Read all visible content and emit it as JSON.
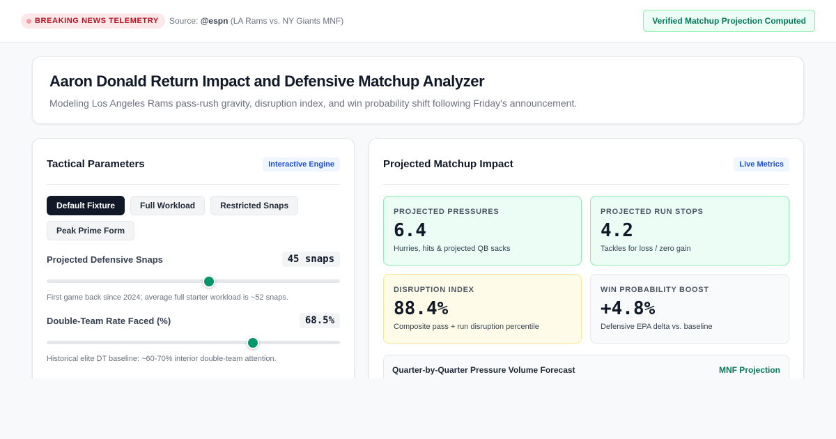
{
  "topbar": {
    "badge": "BREAKING NEWS TELEMETRY",
    "source_prefix": "Source:",
    "source_handle": "@espn",
    "source_context": "(LA Rams vs. NY Giants MNF)",
    "verified": "Verified Matchup Projection Computed"
  },
  "header": {
    "title": "Aaron Donald Return Impact and Defensive Matchup Analyzer",
    "subtitle": "Modeling Los Angeles Rams pass-rush gravity, disruption index, and win probability shift following Friday's announcement."
  },
  "left_panel": {
    "title": "Tactical Parameters",
    "tag": "Interactive Engine",
    "presets": [
      {
        "label": "Default Fixture",
        "active": true
      },
      {
        "label": "Full Workload",
        "active": false
      },
      {
        "label": "Restricted Snaps",
        "active": false
      },
      {
        "label": "Peak Prime Form",
        "active": false
      }
    ],
    "params": [
      {
        "label": "Projected Defensive Snaps",
        "value": "45 snaps",
        "level": 0.553,
        "help": "First game back since 2024; average full starter workload is ~52 snaps."
      },
      {
        "label": "Double-Team Rate Faced (%)",
        "value": "68.5%",
        "level": 0.704,
        "help": "Historical elite DT baseline: ~60-70% interior double-team attention."
      }
    ]
  },
  "right_panel": {
    "title": "Projected Matchup Impact",
    "tag": "Live Metrics",
    "metrics": [
      {
        "label": "PROJECTED PRESSURES",
        "value": "6.4",
        "desc": "Hurries, hits & projected QB sacks",
        "tone": "green"
      },
      {
        "label": "PROJECTED RUN STOPS",
        "value": "4.2",
        "desc": "Tackles for loss / zero gain",
        "tone": "green"
      },
      {
        "label": "DISRUPTION INDEX",
        "value": "88.4%",
        "desc": "Composite pass + run disruption percentile",
        "tone": "amber"
      },
      {
        "label": "WIN PROBABILITY BOOST",
        "value": "+4.8%",
        "desc": "Defensive EPA delta vs. baseline",
        "tone": "gray"
      }
    ],
    "forecast": {
      "title": "Quarter-by-Quarter Pressure Volume Forecast",
      "tag": "MNF Projection"
    }
  },
  "colors": {
    "accent_green": "#059669",
    "breaking_red": "#b3121f",
    "dark_button": "#111827"
  }
}
